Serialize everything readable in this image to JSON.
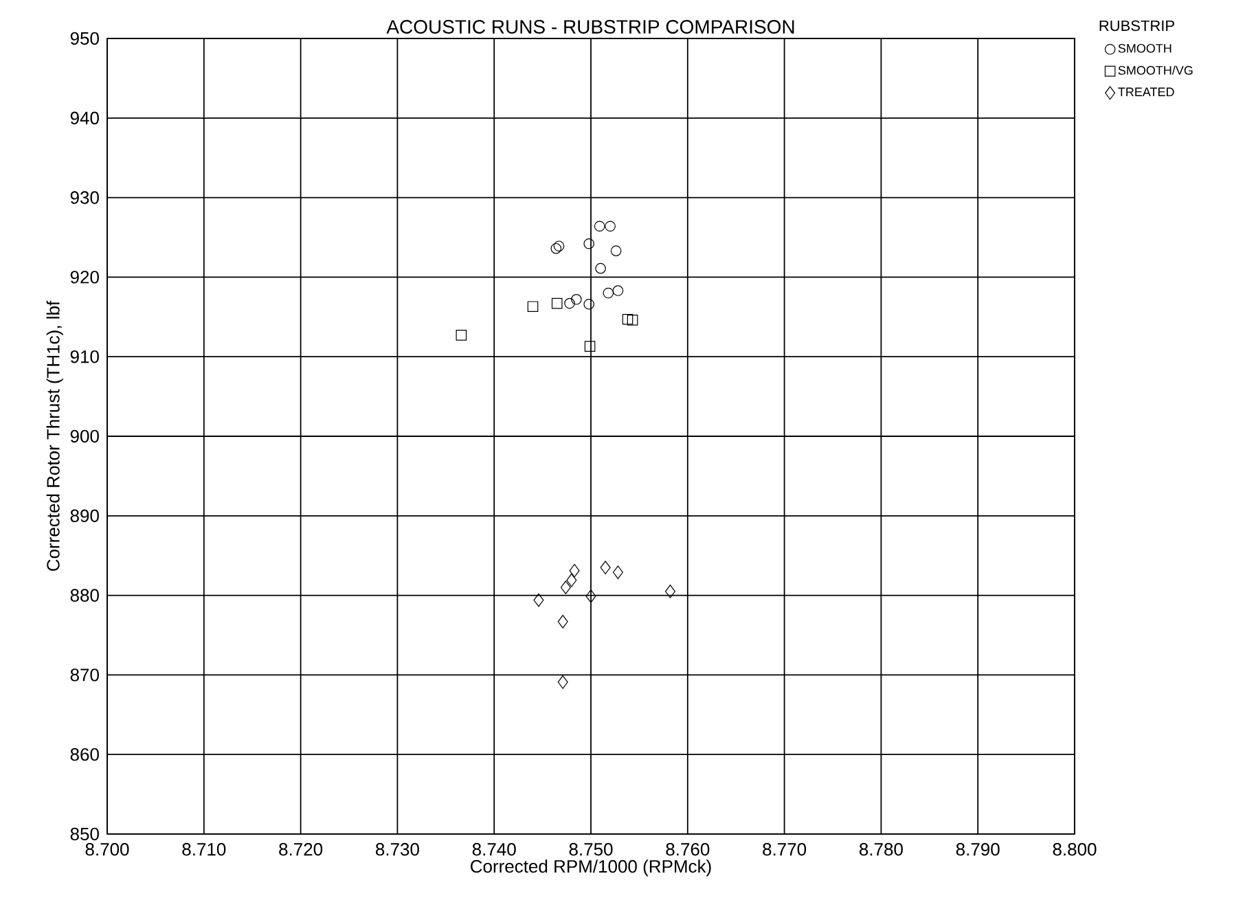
{
  "chart_data": {
    "type": "scatter",
    "title": "ACOUSTIC RUNS - RUBSTRIP COMPARISON",
    "xlabel": "Corrected RPM/1000 (RPMck)",
    "ylabel": "Corrected Rotor Thrust (TH1c),  lbf",
    "legend_title": "RUBSTRIP",
    "legend": "top right",
    "grid": true,
    "xlim": [
      8.7,
      8.8
    ],
    "xticks": [
      {
        "value": 8.7,
        "label": "8.700"
      },
      {
        "value": 8.71,
        "label": "8.710"
      },
      {
        "value": 8.72,
        "label": "8.720"
      },
      {
        "value": 8.73,
        "label": "8.730"
      },
      {
        "value": 8.74,
        "label": "8.740"
      },
      {
        "value": 8.75,
        "label": "8.750"
      },
      {
        "value": 8.76,
        "label": "8.760"
      },
      {
        "value": 8.77,
        "label": "8.770"
      },
      {
        "value": 8.78,
        "label": "8.780"
      },
      {
        "value": 8.79,
        "label": "8.790"
      },
      {
        "value": 8.8,
        "label": "8.800"
      }
    ],
    "ylim": [
      850,
      950
    ],
    "yticks": [
      850,
      860,
      870,
      880,
      890,
      900,
      910,
      920,
      930,
      940,
      950
    ],
    "series": [
      {
        "name": "SMOOTH",
        "color": "#000000",
        "marker": "circle",
        "x": [
          8.7509,
          8.752,
          8.7467,
          8.7464,
          8.7498,
          8.7526,
          8.751,
          8.7518,
          8.7528,
          8.7478,
          8.7485,
          8.7498
        ],
        "values": [
          926.4,
          926.4,
          923.9,
          923.6,
          924.2,
          923.3,
          921.1,
          918.0,
          918.3,
          916.7,
          917.2,
          916.6
        ]
      },
      {
        "name": "SMOOTH/VG",
        "color": "#000000",
        "marker": "square",
        "x": [
          8.744,
          8.7465,
          8.7366,
          8.7538,
          8.7543,
          8.7499
        ],
        "values": [
          916.3,
          916.7,
          912.7,
          914.7,
          914.6,
          911.3
        ]
      },
      {
        "name": "TREATED",
        "color": "#000000",
        "marker": "diamond",
        "x": [
          8.7483,
          8.748,
          8.7474,
          8.7515,
          8.7528,
          8.7446,
          8.75,
          8.7582,
          8.7471,
          8.7471
        ],
        "values": [
          883.1,
          881.9,
          881.0,
          883.5,
          882.9,
          879.4,
          879.9,
          880.5,
          876.7,
          869.1
        ]
      }
    ]
  }
}
